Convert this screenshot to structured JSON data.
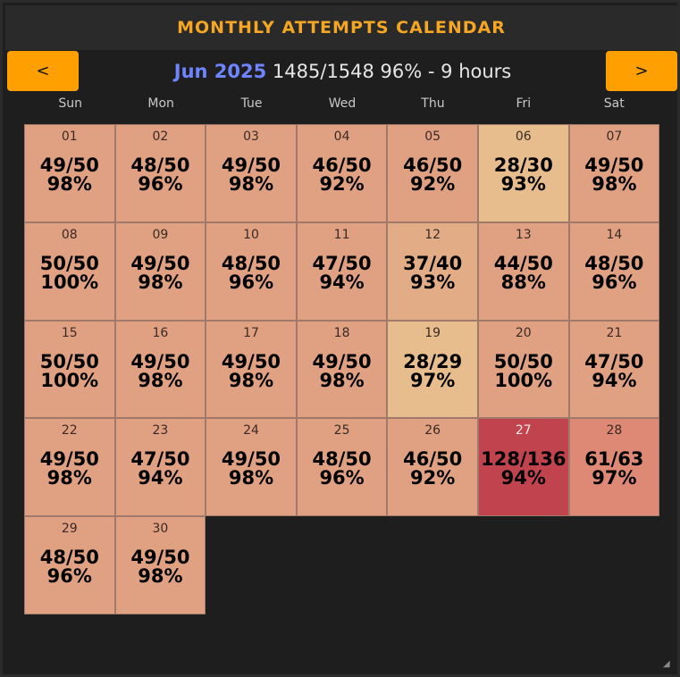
{
  "title": "MONTHLY ATTEMPTS CALENDAR",
  "nav": {
    "prev_label": "<",
    "next_label": ">"
  },
  "header": {
    "month": "Jun 2025",
    "stats": "1485/1548 96% - 9 hours"
  },
  "weekdays": [
    "Sun",
    "Mon",
    "Tue",
    "Wed",
    "Thu",
    "Fri",
    "Sat"
  ],
  "colors": {
    "accent": "#ffa000",
    "title": "#f5a623",
    "month": "#6f84ff",
    "normal": "#e0a082",
    "light": "#e8bd8e",
    "red": "#c0434e",
    "salmon": "#de8876"
  },
  "days": [
    {
      "day": "01",
      "val": "49/50",
      "pct": "98%",
      "tone": "normal"
    },
    {
      "day": "02",
      "val": "48/50",
      "pct": "96%",
      "tone": "normal"
    },
    {
      "day": "03",
      "val": "49/50",
      "pct": "98%",
      "tone": "normal"
    },
    {
      "day": "04",
      "val": "46/50",
      "pct": "92%",
      "tone": "normal"
    },
    {
      "day": "05",
      "val": "46/50",
      "pct": "92%",
      "tone": "normal"
    },
    {
      "day": "06",
      "val": "28/30",
      "pct": "93%",
      "tone": "light"
    },
    {
      "day": "07",
      "val": "49/50",
      "pct": "98%",
      "tone": "normal"
    },
    {
      "day": "08",
      "val": "50/50",
      "pct": "100%",
      "tone": "normal"
    },
    {
      "day": "09",
      "val": "49/50",
      "pct": "98%",
      "tone": "normal"
    },
    {
      "day": "10",
      "val": "48/50",
      "pct": "96%",
      "tone": "normal"
    },
    {
      "day": "11",
      "val": "47/50",
      "pct": "94%",
      "tone": "normal"
    },
    {
      "day": "12",
      "val": "37/40",
      "pct": "93%",
      "tone": "midlight"
    },
    {
      "day": "13",
      "val": "44/50",
      "pct": "88%",
      "tone": "normal"
    },
    {
      "day": "14",
      "val": "48/50",
      "pct": "96%",
      "tone": "normal"
    },
    {
      "day": "15",
      "val": "50/50",
      "pct": "100%",
      "tone": "normal"
    },
    {
      "day": "16",
      "val": "49/50",
      "pct": "98%",
      "tone": "normal"
    },
    {
      "day": "17",
      "val": "49/50",
      "pct": "98%",
      "tone": "normal"
    },
    {
      "day": "18",
      "val": "49/50",
      "pct": "98%",
      "tone": "normal"
    },
    {
      "day": "19",
      "val": "28/29",
      "pct": "97%",
      "tone": "light"
    },
    {
      "day": "20",
      "val": "50/50",
      "pct": "100%",
      "tone": "normal"
    },
    {
      "day": "21",
      "val": "47/50",
      "pct": "94%",
      "tone": "normal"
    },
    {
      "day": "22",
      "val": "49/50",
      "pct": "98%",
      "tone": "normal"
    },
    {
      "day": "23",
      "val": "47/50",
      "pct": "94%",
      "tone": "normal"
    },
    {
      "day": "24",
      "val": "49/50",
      "pct": "98%",
      "tone": "normal"
    },
    {
      "day": "25",
      "val": "48/50",
      "pct": "96%",
      "tone": "normal"
    },
    {
      "day": "26",
      "val": "46/50",
      "pct": "92%",
      "tone": "normal"
    },
    {
      "day": "27",
      "val": "128/136",
      "pct": "94%",
      "tone": "red"
    },
    {
      "day": "28",
      "val": "61/63",
      "pct": "97%",
      "tone": "salmon"
    },
    {
      "day": "29",
      "val": "48/50",
      "pct": "96%",
      "tone": "normal"
    },
    {
      "day": "30",
      "val": "49/50",
      "pct": "98%",
      "tone": "normal"
    }
  ]
}
